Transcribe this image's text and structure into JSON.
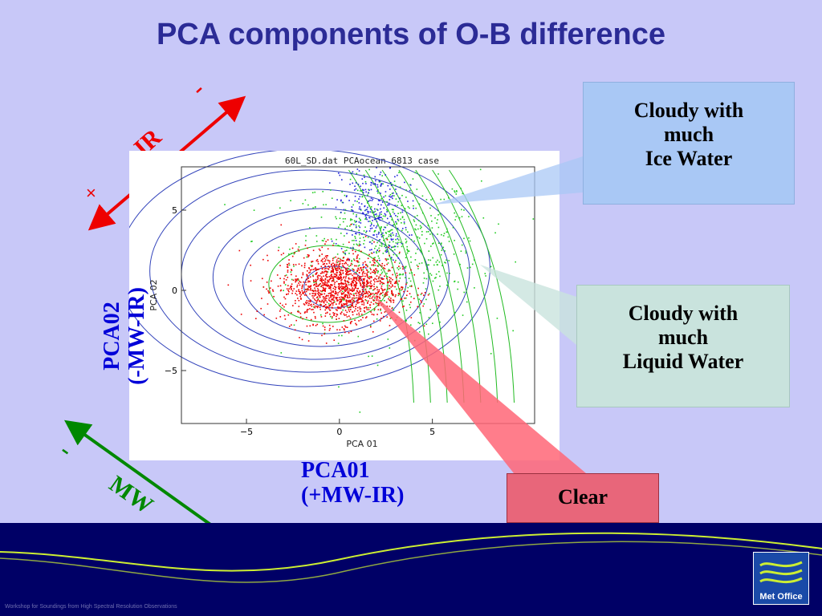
{
  "slide": {
    "title": "PCA components of O-B difference",
    "footer_text": "Workshop for Soundings from High Spectral Resolution Observations",
    "logo_text": "Met Office"
  },
  "annotations": {
    "ice_box": [
      "Cloudy with",
      "much",
      "Ice Water"
    ],
    "liquid_box": [
      "Cloudy with",
      "much",
      "Liquid Water"
    ],
    "clear_box": "Clear",
    "pca01_label": [
      "PCA01",
      "(+MW-IR)"
    ],
    "pca02_label": [
      "PCA02",
      "(-MW-IR)"
    ],
    "ir_arrow": {
      "label": "IR",
      "minus": "-",
      "plus": "×",
      "color": "#ee0000"
    },
    "mw_arrow": {
      "label": "MW",
      "minus": "-",
      "plus": "×",
      "color": "#008800"
    }
  },
  "colors": {
    "background": "#c8c8f8",
    "title": "#2b2b96",
    "axis_label": "#0000d8",
    "ice_box": "#a9c8f5",
    "liquid_box": "#c9e3dd",
    "clear_box": "#e8667a",
    "footer": "#000066",
    "wave": "#ccee33"
  },
  "chart_data": {
    "type": "scatter",
    "title": "60L_SD.dat PCAocean 6813 case",
    "xlabel": "PCA 01",
    "ylabel": "PCA 02",
    "xlim": [
      -8.5,
      10.5
    ],
    "ylim": [
      -8.3,
      7.7
    ],
    "xticks": [
      -5,
      0,
      5
    ],
    "yticks": [
      -5,
      0,
      5
    ],
    "series": [
      {
        "color": "#ee0000",
        "approx_center": [
          0,
          0.2
        ],
        "approx_spread": [
          1.6,
          1.1
        ]
      },
      {
        "color": "#22cc22",
        "approx_center": [
          2.5,
          2.5
        ],
        "approx_spread": [
          2.5,
          2.5
        ]
      },
      {
        "color": "#2222dd",
        "approx_center": [
          1.8,
          5.0
        ],
        "approx_spread": [
          0.9,
          1.6
        ]
      }
    ],
    "contour_levels_visible": [
      "10",
      "20",
      "30",
      "40",
      "50",
      "60",
      "70",
      "80",
      "90",
      "100",
      "200"
    ]
  }
}
